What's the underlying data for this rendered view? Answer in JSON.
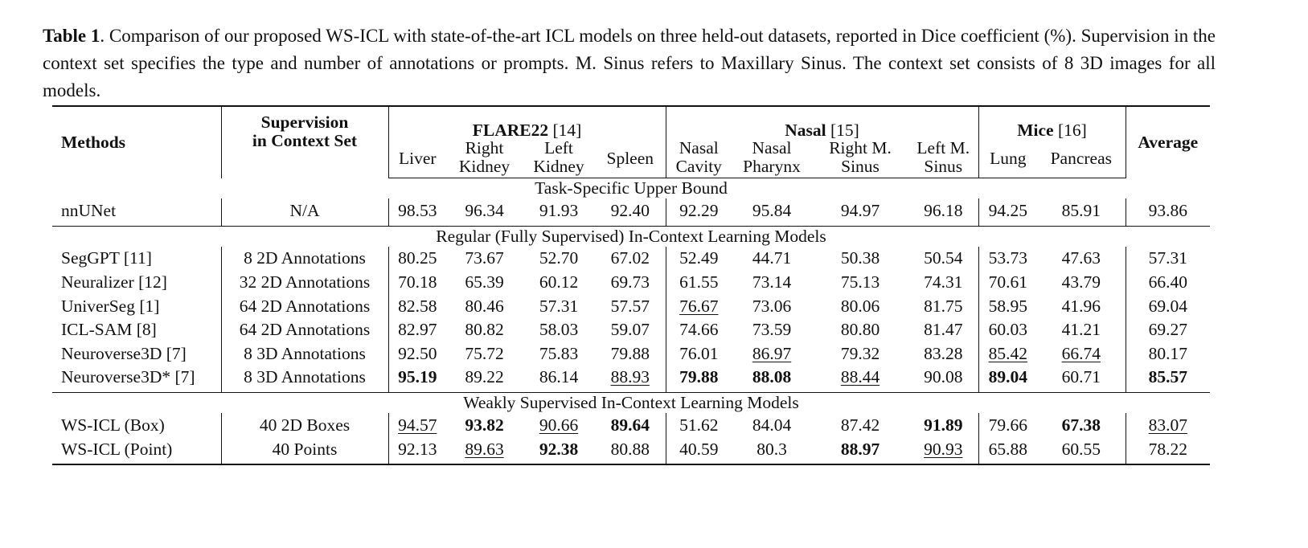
{
  "caption": {
    "label": "Table 1",
    "text": ". Comparison of our proposed WS-ICL with state-of-the-art ICL models on three held-out datasets, reported in Dice coefficient (%). Supervision in the context set specifies the type and number of annotations or prompts. M. Sinus refers to Maxillary Sinus. The context set consists of 8 3D images for all models."
  },
  "table": {
    "header": {
      "methods": "Methods",
      "supervision": [
        "Supervision",
        "in Context Set"
      ],
      "groups": [
        {
          "name": "FLARE22",
          "ref": "[14]",
          "columns": [
            [
              "Liver"
            ],
            [
              "Right",
              "Kidney"
            ],
            [
              "Left",
              "Kidney"
            ],
            [
              "Spleen"
            ]
          ]
        },
        {
          "name": "Nasal",
          "ref": "[15]",
          "columns": [
            [
              "Nasal",
              "Cavity"
            ],
            [
              "Nasal",
              "Pharynx"
            ],
            [
              "Right M.",
              "Sinus"
            ],
            [
              "Left M.",
              "Sinus"
            ]
          ]
        },
        {
          "name": "Mice",
          "ref": "[16]",
          "columns": [
            [
              "Lung"
            ],
            [
              "Pancreas"
            ]
          ]
        }
      ],
      "average": "Average"
    },
    "sections": [
      {
        "title": "Task-Specific Upper Bound",
        "rows": [
          {
            "method": "nnUNet",
            "supervision": "N/A",
            "values": [
              "98.53",
              "96.34",
              "91.93",
              "92.40",
              "92.29",
              "95.84",
              "94.97",
              "96.18",
              "94.25",
              "85.91",
              "93.86"
            ]
          }
        ]
      },
      {
        "title": "Regular (Fully Supervised) In-Context Learning Models",
        "rows": [
          {
            "method": "SegGPT [11]",
            "supervision": "8 2D Annotations",
            "values": [
              "80.25",
              "73.67",
              "52.70",
              "67.02",
              "52.49",
              "44.71",
              "50.38",
              "50.54",
              "53.73",
              "47.63",
              "57.31"
            ]
          },
          {
            "method": "Neuralizer [12]",
            "supervision": "32 2D Annotations",
            "values": [
              "70.18",
              "65.39",
              "60.12",
              "69.73",
              "61.55",
              "73.14",
              "75.13",
              "74.31",
              "70.61",
              "43.79",
              "66.40"
            ]
          },
          {
            "method": "UniverSeg [1]",
            "supervision": "64 2D Annotations",
            "values": [
              "82.58",
              "80.46",
              "57.31",
              "57.57",
              "76.67",
              "73.06",
              "80.06",
              "81.75",
              "58.95",
              "41.96",
              "69.04"
            ],
            "underline": [
              4
            ]
          },
          {
            "method": "ICL-SAM [8]",
            "supervision": "64 2D Annotations",
            "values": [
              "82.97",
              "80.82",
              "58.03",
              "59.07",
              "74.66",
              "73.59",
              "80.80",
              "81.47",
              "60.03",
              "41.21",
              "69.27"
            ]
          },
          {
            "method": "Neuroverse3D [7]",
            "supervision": "8 3D Annotations",
            "values": [
              "92.50",
              "75.72",
              "75.83",
              "79.88",
              "76.01",
              "86.97",
              "79.32",
              "83.28",
              "85.42",
              "66.74",
              "80.17"
            ],
            "underline": [
              5,
              8,
              9
            ]
          },
          {
            "method": "Neuroverse3D* [7]",
            "supervision": "8 3D Annotations",
            "values": [
              "95.19",
              "89.22",
              "86.14",
              "88.93",
              "79.88",
              "88.08",
              "88.44",
              "90.08",
              "89.04",
              "60.71",
              "85.57"
            ],
            "bold": [
              0,
              4,
              5,
              8,
              10
            ],
            "underline": [
              3,
              6
            ]
          }
        ]
      },
      {
        "title": "Weakly Supervised In-Context Learning Models",
        "rows": [
          {
            "method": "WS-ICL (Box)",
            "supervision": "40 2D Boxes",
            "values": [
              "94.57",
              "93.82",
              "90.66",
              "89.64",
              "51.62",
              "84.04",
              "87.42",
              "91.89",
              "79.66",
              "67.38",
              "83.07"
            ],
            "bold": [
              1,
              3,
              7,
              9
            ],
            "underline": [
              0,
              2,
              10
            ]
          },
          {
            "method": "WS-ICL (Point)",
            "supervision": "40 Points",
            "values": [
              "92.13",
              "89.63",
              "92.38",
              "80.88",
              "40.59",
              "80.3",
              "88.97",
              "90.93",
              "65.88",
              "60.55",
              "78.22"
            ],
            "bold": [
              2,
              6
            ],
            "underline": [
              1,
              7
            ]
          }
        ]
      }
    ]
  }
}
